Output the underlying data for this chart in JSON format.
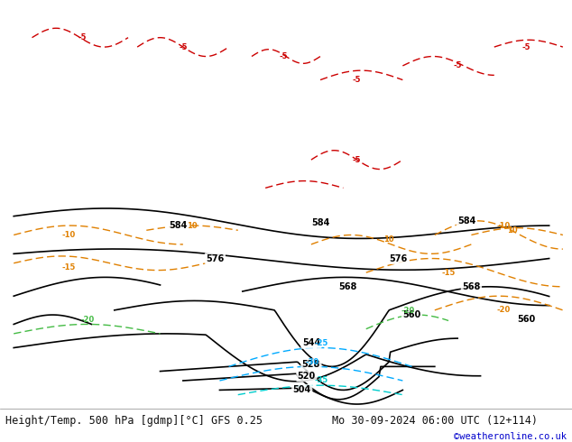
{
  "title_left": "Height/Temp. 500 hPa [gdmp][°C] GFS 0.25",
  "title_right": "Mo 30-09-2024 06:00 UTC (12+114)",
  "copyright": "©weatheronline.co.uk",
  "ocean_color": "#d4dce4",
  "land_color": "#c8c8c8",
  "aus_green_color": "#b8e8a0",
  "nz_green_color": "#b8e8a0",
  "fig_width": 6.34,
  "fig_height": 4.9,
  "dpi": 100,
  "bottom_text_color": "#111111",
  "copyright_color": "#0000cc",
  "font_size_title": 8.5,
  "font_size_copyright": 7.5,
  "geo_color": "#000000",
  "temp_orange_color": "#e08000",
  "temp_red_color": "#cc0000",
  "temp_blue_color": "#00aaff",
  "temp_cyan_color": "#00cccc",
  "temp_green_color": "#44bb44",
  "lon_min": 60,
  "lon_max": 185,
  "lat_min": -65,
  "lat_max": 22
}
